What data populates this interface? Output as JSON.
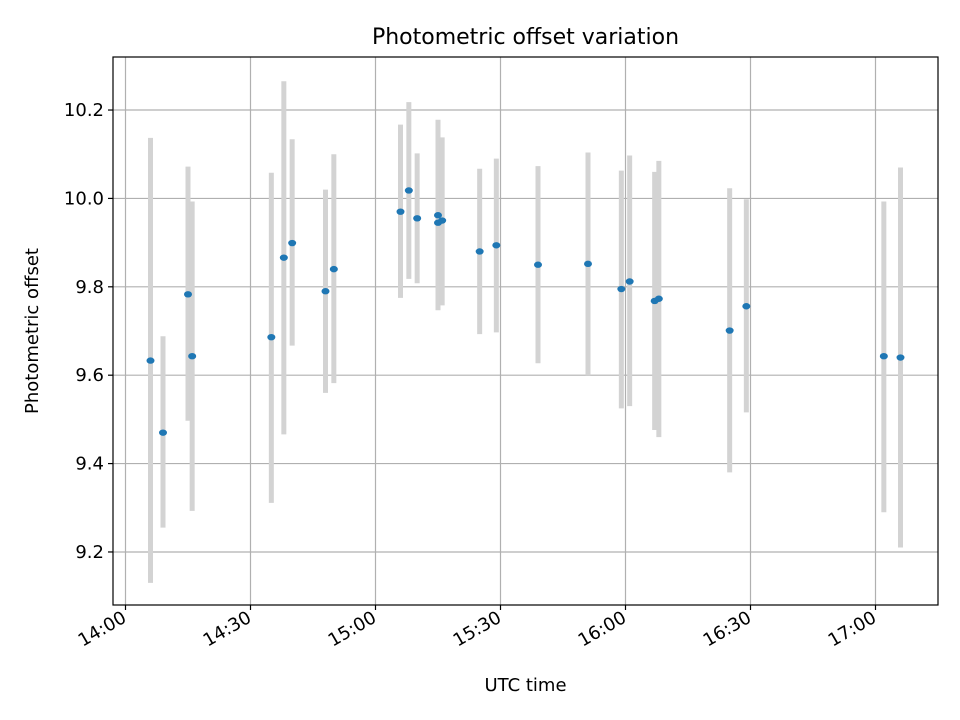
{
  "chart_data": {
    "type": "scatter",
    "title": "Photometric offset variation",
    "xlabel": "UTC time",
    "ylabel": "Photometric offset",
    "x_unit": "UTC time (HH:MM)",
    "xlim": [
      "13:57",
      "17:15"
    ],
    "ylim": [
      9.08,
      10.32
    ],
    "x_ticks": [
      "14:00",
      "14:30",
      "15:00",
      "15:30",
      "16:00",
      "16:30",
      "17:00"
    ],
    "y_ticks": [
      "9.2",
      "9.4",
      "9.6",
      "9.8",
      "10.0",
      "10.2"
    ],
    "grid": true,
    "point_color": "#1f77b4",
    "errorbar_color": "#d3d3d3",
    "series": [
      {
        "points": [
          {
            "x": "14:06",
            "y": 9.633,
            "ylow": 9.13,
            "yhigh": 10.137
          },
          {
            "x": "14:09",
            "y": 9.47,
            "ylow": 9.255,
            "yhigh": 9.688
          },
          {
            "x": "14:15",
            "y": 9.783,
            "ylow": 9.497,
            "yhigh": 10.072
          },
          {
            "x": "14:16",
            "y": 9.643,
            "ylow": 9.293,
            "yhigh": 9.993
          },
          {
            "x": "14:35",
            "y": 9.686,
            "ylow": 9.311,
            "yhigh": 10.058
          },
          {
            "x": "14:38",
            "y": 9.866,
            "ylow": 9.466,
            "yhigh": 10.265
          },
          {
            "x": "14:40",
            "y": 9.899,
            "ylow": 9.667,
            "yhigh": 10.134
          },
          {
            "x": "14:48",
            "y": 9.79,
            "ylow": 9.56,
            "yhigh": 10.02
          },
          {
            "x": "14:50",
            "y": 9.84,
            "ylow": 9.582,
            "yhigh": 10.1
          },
          {
            "x": "15:06",
            "y": 9.97,
            "ylow": 9.775,
            "yhigh": 10.167
          },
          {
            "x": "15:08",
            "y": 10.018,
            "ylow": 9.818,
            "yhigh": 10.218
          },
          {
            "x": "15:10",
            "y": 9.955,
            "ylow": 9.808,
            "yhigh": 10.102
          },
          {
            "x": "15:15",
            "y": 9.945,
            "ylow": 9.777,
            "yhigh": 10.105
          },
          {
            "x": "15:15",
            "y": 9.962,
            "ylow": 9.747,
            "yhigh": 10.178
          },
          {
            "x": "15:16",
            "y": 9.95,
            "ylow": 9.758,
            "yhigh": 10.138
          },
          {
            "x": "15:25",
            "y": 9.88,
            "ylow": 9.693,
            "yhigh": 10.067
          },
          {
            "x": "15:29",
            "y": 9.894,
            "ylow": 9.697,
            "yhigh": 10.09
          },
          {
            "x": "15:39",
            "y": 9.85,
            "ylow": 9.627,
            "yhigh": 10.073
          },
          {
            "x": "15:51",
            "y": 9.852,
            "ylow": 9.6,
            "yhigh": 10.104
          },
          {
            "x": "15:59",
            "y": 9.795,
            "ylow": 9.525,
            "yhigh": 10.063
          },
          {
            "x": "16:01",
            "y": 9.812,
            "ylow": 9.53,
            "yhigh": 10.097
          },
          {
            "x": "16:07",
            "y": 9.768,
            "ylow": 9.476,
            "yhigh": 10.06
          },
          {
            "x": "16:08",
            "y": 9.773,
            "ylow": 9.46,
            "yhigh": 10.085
          },
          {
            "x": "16:25",
            "y": 9.701,
            "ylow": 9.38,
            "yhigh": 10.023
          },
          {
            "x": "16:29",
            "y": 9.756,
            "ylow": 9.516,
            "yhigh": 9.998
          },
          {
            "x": "17:02",
            "y": 9.643,
            "ylow": 9.29,
            "yhigh": 9.993
          },
          {
            "x": "17:06",
            "y": 9.64,
            "ylow": 9.21,
            "yhigh": 10.07
          }
        ]
      }
    ]
  }
}
